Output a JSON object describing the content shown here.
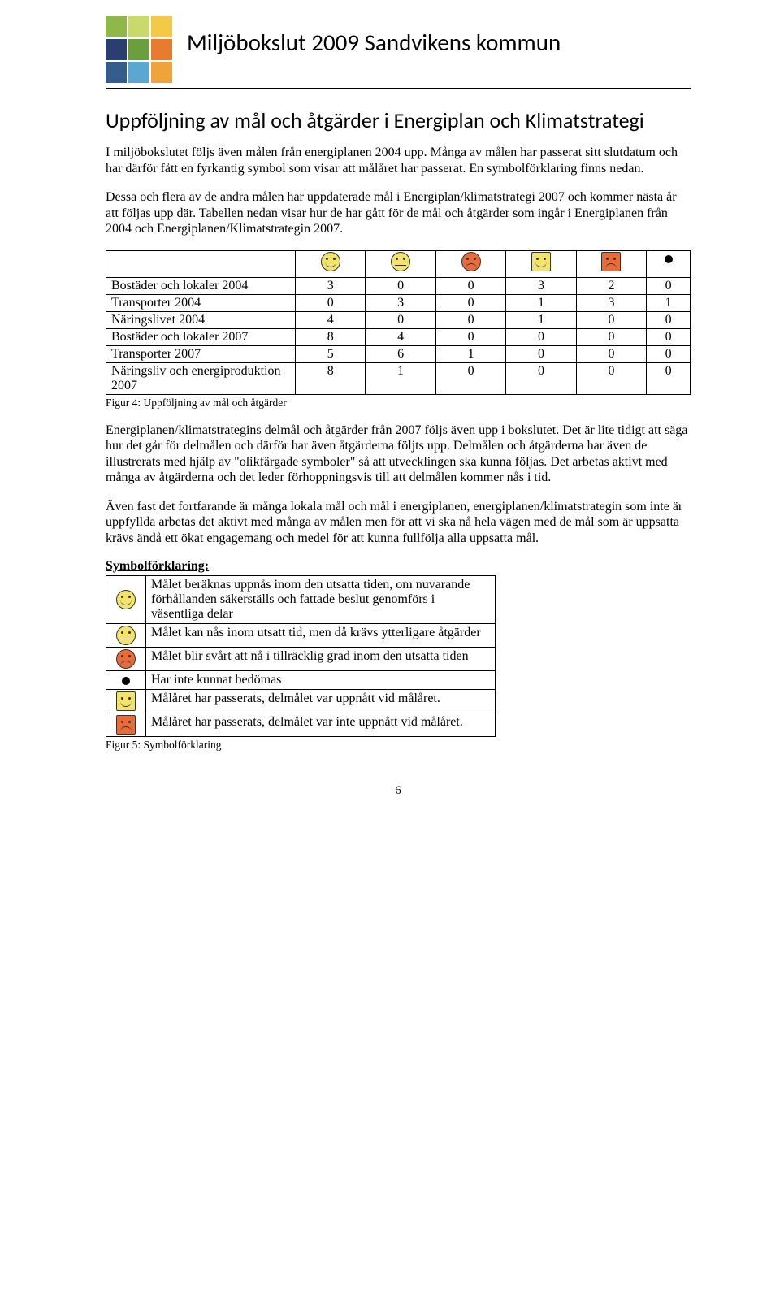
{
  "header": {
    "title": "Miljöbokslut 2009 Sandvikens kommun",
    "logo_colors": [
      "#8fb84a",
      "#c9d96a",
      "#f3c948",
      "#2a3e6f",
      "#6a9e3f",
      "#e97b2e",
      "#355d8c",
      "#5aa7d1",
      "#f0a33a"
    ]
  },
  "section_title": "Uppföljning av mål och åtgärder i Energiplan och Klimatstrategi",
  "para1": "I miljöbokslutet följs även målen från energiplanen 2004 upp. Många av målen har passerat sitt slutdatum och har därför fått en fyrkantig symbol som visar att målåret har passerat. En symbolförklaring finns nedan.",
  "para2": "Dessa och flera av de andra målen har uppdaterade mål i Energiplan/klimatstrategi 2007 och kommer nästa år att följas upp där. Tabellen nedan visar hur de har gått för de mål och åtgärder som ingår i Energiplanen från 2004 och Energiplanen/Klimatstrategin 2007.",
  "table": {
    "header_icons": [
      "happy-round",
      "neutral-round",
      "sad-round",
      "happy-square",
      "sad-square",
      "dot"
    ],
    "rows": [
      {
        "label": "Bostäder och lokaler 2004",
        "vals": [
          "3",
          "0",
          "0",
          "3",
          "2",
          "0"
        ]
      },
      {
        "label": "Transporter 2004",
        "vals": [
          "0",
          "3",
          "0",
          "1",
          "3",
          "1"
        ]
      },
      {
        "label": "Näringslivet 2004",
        "vals": [
          "4",
          "0",
          "0",
          "1",
          "0",
          "0"
        ]
      },
      {
        "label": "Bostäder och lokaler 2007",
        "vals": [
          "8",
          "4",
          "0",
          "0",
          "0",
          "0"
        ]
      },
      {
        "label": "Transporter 2007",
        "vals": [
          "5",
          "6",
          "1",
          "0",
          "0",
          "0"
        ]
      },
      {
        "label": "Näringsliv och energiproduktion 2007",
        "vals": [
          "8",
          "1",
          "0",
          "0",
          "0",
          "0"
        ]
      }
    ],
    "caption": "Figur 4: Uppföljning av mål och åtgärder"
  },
  "para3": "Energiplanen/klimatstrategins delmål och åtgärder från 2007 följs även upp i bokslutet. Det är lite tidigt att säga hur det går för delmålen och därför har även åtgärderna följts upp. Delmålen och åtgärderna har även de illustrerats med hjälp av \"olikfärgade symboler\" så att utvecklingen ska kunna följas. Det arbetas aktivt med många av åtgärderna och det leder förhoppningsvis till att delmålen kommer nås i tid.",
  "para4": "Även fast det fortfarande är många lokala mål och mål i energiplanen, energiplanen/klimatstrategin som inte är uppfyllda arbetas det aktivt med många av målen men för att vi ska nå hela vägen med de mål som är uppsatta krävs ändå ett ökat engagemang och medel för att kunna fullfölja alla uppsatta mål.",
  "legend": {
    "title": "Symbolförklaring:",
    "rows": [
      {
        "icon": "happy-round",
        "color": "#f2e36b",
        "text": "Målet beräknas uppnås inom den utsatta tiden, om nuvarande förhållanden säkerställs och fattade beslut genomförs i väsentliga delar"
      },
      {
        "icon": "neutral-round",
        "color": "#f2e36b",
        "text": "Målet kan nås inom utsatt tid, men då krävs ytterligare åtgärder"
      },
      {
        "icon": "sad-round",
        "color": "#e86b3a",
        "text": "Målet blir svårt att nå i tillräcklig grad inom den utsatta tiden"
      },
      {
        "icon": "dot",
        "color": "#000000",
        "text": "Har inte kunnat bedömas"
      },
      {
        "icon": "happy-square",
        "color": "#f2e36b",
        "text": "Målåret har passerats, delmålet var uppnått vid målåret."
      },
      {
        "icon": "sad-square",
        "color": "#e86b3a",
        "text": "Målåret har passerats, delmålet var inte uppnått vid målåret."
      }
    ],
    "caption": "Figur 5: Symbolförklaring"
  },
  "icon_colors": {
    "happy-round": "#f2e36b",
    "neutral-round": "#f2e36b",
    "sad-round": "#e86b3a",
    "happy-square": "#f2e36b",
    "sad-square": "#e86b3a"
  },
  "page_number": "6"
}
